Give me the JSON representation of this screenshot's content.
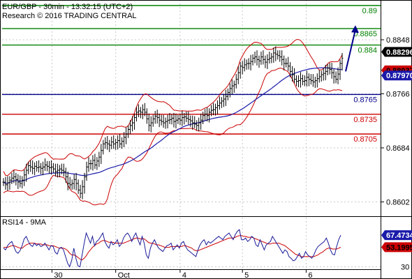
{
  "header": {
    "line1": "EUR/GBP - 30min - 13:32:15 (UTC+2)",
    "line2": "Research © 2016 TRADING CENTRAL"
  },
  "colors": {
    "green": "#008000",
    "red": "#cc0000",
    "blue": "#00008b",
    "price": "#000000",
    "bollinger": "#cc0000",
    "ma": "#1a1aaa",
    "arrow": "#00008b",
    "grid": "#c8c8c8",
    "rsi_line": "#1a1a99",
    "rsi_ma": "#cc0000"
  },
  "chart_data": [
    {
      "type": "line",
      "title": "EUR/GBP - 30min - 13:32:15 (UTC+2)",
      "symbol": "EUR/GBP",
      "timeframe": "30min",
      "ylim": [
        0.8582,
        0.8905
      ],
      "y_ticks": [
        "0.8848",
        "0.8766",
        "0.8684",
        "0.8602"
      ],
      "x_ticks": [
        "30",
        "Oct",
        "4",
        "5",
        "6"
      ],
      "grid": true,
      "levels": [
        {
          "label": "0.89",
          "value": 0.89,
          "color": "green"
        },
        {
          "label": "0.8865",
          "value": 0.8865,
          "color": "green"
        },
        {
          "label": "0.884",
          "value": 0.884,
          "color": "green"
        },
        {
          "label": "0.8765",
          "value": 0.8765,
          "color": "blue"
        },
        {
          "label": "0.8735",
          "value": 0.8735,
          "color": "red"
        },
        {
          "label": "0.8705",
          "value": 0.8705,
          "color": "red"
        }
      ],
      "badges": [
        {
          "label": "0.88296",
          "value": 0.88296,
          "bg": "#000000",
          "fg": "#ffffff"
        },
        {
          "label": "0.88037",
          "value": 0.88037,
          "bg": "#cc0000",
          "fg": "#000000"
        },
        {
          "label": "0.87970",
          "value": 0.8797,
          "bg": "#1a1aaa",
          "fg": "#ffffff"
        }
      ],
      "series": [
        {
          "name": "price",
          "kind": "ohlc",
          "t": [
            0,
            3,
            6,
            9,
            12,
            15,
            18,
            21,
            24,
            27,
            30,
            33,
            36,
            39,
            42,
            45,
            48,
            51,
            54,
            57,
            60,
            63,
            66,
            69,
            72,
            75,
            78,
            81,
            84,
            87,
            90,
            93,
            96,
            99,
            102,
            105,
            108,
            111,
            114,
            117,
            120,
            123,
            126,
            129,
            132,
            135,
            138,
            141,
            144,
            147,
            150,
            153,
            156,
            159,
            162,
            165,
            168,
            171,
            174,
            177,
            180,
            183,
            186,
            189,
            192,
            195,
            198,
            201,
            204,
            207,
            210,
            213,
            216,
            219,
            222,
            225,
            228,
            231,
            234,
            237,
            240,
            243,
            246,
            249,
            252,
            255,
            258,
            261,
            264,
            267,
            270,
            273,
            276,
            279,
            282,
            285,
            288,
            291,
            294,
            297,
            300,
            303,
            306,
            309,
            312,
            315,
            318,
            321,
            324,
            327,
            330,
            333,
            336,
            339,
            342,
            345,
            348,
            351,
            354,
            357,
            360,
            363,
            366,
            369,
            372,
            375,
            378,
            381,
            384,
            387,
            390,
            393,
            396,
            399,
            402,
            405,
            408,
            411,
            414,
            417,
            420,
            423,
            426,
            429,
            432,
            435,
            438,
            441,
            444,
            447,
            450,
            453,
            456,
            459,
            462,
            465,
            468,
            471,
            474,
            477,
            480,
            483,
            486,
            489
          ],
          "close": [
            0.8632,
            0.8628,
            0.8631,
            0.8635,
            0.8638,
            0.864,
            0.8636,
            0.8632,
            0.863,
            0.8635,
            0.8643,
            0.865,
            0.8657,
            0.8655,
            0.8653,
            0.8656,
            0.8654,
            0.8655,
            0.8653,
            0.8655,
            0.8658,
            0.8656,
            0.8654,
            0.8655,
            0.8652,
            0.8648,
            0.865,
            0.8652,
            0.865,
            0.8648,
            0.864,
            0.863,
            0.8628,
            0.863,
            0.8636,
            0.863,
            0.862,
            0.8615,
            0.8625,
            0.864,
            0.8655,
            0.866,
            0.866,
            0.8665,
            0.8658,
            0.8664,
            0.867,
            0.868,
            0.869,
            0.8692,
            0.869,
            0.8688,
            0.8693,
            0.869,
            0.8692,
            0.8695,
            0.869,
            0.8694,
            0.87,
            0.8705,
            0.8712,
            0.8718,
            0.8722,
            0.873,
            0.8738,
            0.874,
            0.8738,
            0.8742,
            0.8738,
            0.8728,
            0.8718,
            0.8722,
            0.8728,
            0.8732,
            0.873,
            0.8726,
            0.8724,
            0.8722,
            0.8724,
            0.8726,
            0.8727,
            0.8729,
            0.8724,
            0.8726,
            0.8728,
            0.8726,
            0.873,
            0.8731,
            0.8729,
            0.8727,
            0.8725,
            0.8722,
            0.872,
            0.8718,
            0.8722,
            0.8726,
            0.8733,
            0.8735,
            0.8733,
            0.8738,
            0.8741,
            0.8742,
            0.8745,
            0.8748,
            0.8752,
            0.8755,
            0.8758,
            0.8762,
            0.8768,
            0.8774,
            0.8778,
            0.878,
            0.8788,
            0.8798,
            0.8808,
            0.8806,
            0.881,
            0.8812,
            0.8812,
            0.8815,
            0.882,
            0.8822,
            0.8818,
            0.8816,
            0.8822,
            0.8818,
            0.8814,
            0.8818,
            0.882,
            0.8822,
            0.8828,
            0.8826,
            0.8824,
            0.8822,
            0.8818,
            0.8812,
            0.8812,
            0.8808,
            0.88,
            0.8795,
            0.8788,
            0.8785,
            0.8786,
            0.8789,
            0.8785,
            0.8786,
            0.8791,
            0.8788,
            0.8786,
            0.8784,
            0.8786,
            0.8789,
            0.8792,
            0.8795,
            0.8797,
            0.88,
            0.8805,
            0.8803,
            0.8798,
            0.8792,
            0.8788,
            0.8796,
            0.8812,
            0.882
          ],
          "ohlc_values_in_data_units": true
        },
        {
          "name": "bollinger_upper",
          "kind": "line",
          "note_values": "0.8648 to 0.8846"
        },
        {
          "name": "bollinger_lower",
          "kind": "line",
          "note_values": "0.8598 to 0.8780"
        },
        {
          "name": "ma",
          "kind": "line",
          "note_values": "0.8628 to 0.8798"
        }
      ],
      "forecast_arrow": {
        "from": 0.88,
        "to": 0.887
      }
    },
    {
      "type": "line",
      "title": "RSI14 - 9MA",
      "ylim": [
        27,
        80
      ],
      "y_ticks": [
        "30"
      ],
      "badges": [
        {
          "label": "67.4734",
          "value": 67.4734,
          "bg": "#1a1aaa",
          "fg": "#ffffff"
        },
        {
          "label": "53.1995",
          "value": 53.1995,
          "bg": "#cc0000",
          "fg": "#000000"
        }
      ],
      "series": [
        {
          "name": "RSI14",
          "values": [
            52,
            50,
            55,
            58,
            60,
            54,
            48,
            46,
            49,
            55,
            63,
            66,
            60,
            56,
            54,
            58,
            55,
            57,
            54,
            55,
            58,
            54,
            50,
            55,
            54,
            47,
            45,
            52,
            53,
            50,
            42,
            34,
            30,
            38,
            52,
            40,
            31,
            30,
            44,
            58,
            70,
            64,
            58,
            66,
            55,
            60,
            62,
            66,
            70,
            60,
            55,
            52,
            60,
            56,
            58,
            62,
            54,
            57,
            64,
            68,
            70,
            66,
            60,
            66,
            70,
            62,
            56,
            66,
            58,
            44,
            40,
            52,
            58,
            62,
            56,
            52,
            50,
            48,
            52,
            55,
            56,
            58,
            50,
            53,
            56,
            52,
            58,
            60,
            54,
            50,
            48,
            46,
            44,
            42,
            50,
            56,
            60,
            62,
            56,
            60,
            58,
            60,
            62,
            64,
            66,
            64,
            62,
            66,
            68,
            70,
            66,
            62,
            68,
            72,
            74,
            62,
            62,
            64,
            60,
            62,
            66,
            64,
            56,
            54,
            62,
            56,
            50,
            56,
            58,
            60,
            66,
            62,
            58,
            54,
            50,
            46,
            50,
            48,
            42,
            40,
            37,
            38,
            42,
            46,
            40,
            42,
            48,
            44,
            42,
            40,
            44,
            50,
            54,
            56,
            58,
            60,
            64,
            58,
            50,
            45,
            44,
            54,
            62,
            67.5
          ]
        },
        {
          "name": "9MA",
          "values": [
            53,
            53,
            53,
            54,
            55,
            55,
            54,
            53,
            52,
            52,
            54,
            56,
            57,
            58,
            58,
            58,
            57,
            57,
            57,
            56,
            56,
            56,
            55,
            55,
            55,
            54,
            53,
            52,
            52,
            52,
            51,
            49,
            46,
            44,
            44,
            43,
            41,
            39,
            38,
            40,
            43,
            47,
            50,
            53,
            55,
            57,
            58,
            60,
            61,
            61,
            60,
            59,
            59,
            59,
            58,
            58,
            58,
            58,
            58,
            59,
            60,
            61,
            62,
            63,
            64,
            64,
            63,
            63,
            63,
            61,
            59,
            58,
            58,
            57,
            56,
            56,
            55,
            54,
            53,
            53,
            53,
            54,
            54,
            54,
            54,
            54,
            54,
            55,
            55,
            54,
            53,
            52,
            50,
            49,
            49,
            50,
            51,
            52,
            53,
            54,
            55,
            56,
            57,
            58,
            59,
            60,
            61,
            62,
            63,
            64,
            64,
            64,
            65,
            66,
            67,
            67,
            66,
            66,
            65,
            65,
            65,
            64,
            63,
            62,
            61,
            60,
            59,
            58,
            57,
            57,
            58,
            58,
            58,
            58,
            57,
            56,
            55,
            53,
            51,
            49,
            47,
            45,
            44,
            43,
            42,
            42,
            42,
            42,
            42,
            42,
            42,
            43,
            44,
            46,
            47,
            49,
            51,
            52,
            52,
            51,
            51,
            51,
            52,
            53.2
          ]
        }
      ]
    }
  ]
}
